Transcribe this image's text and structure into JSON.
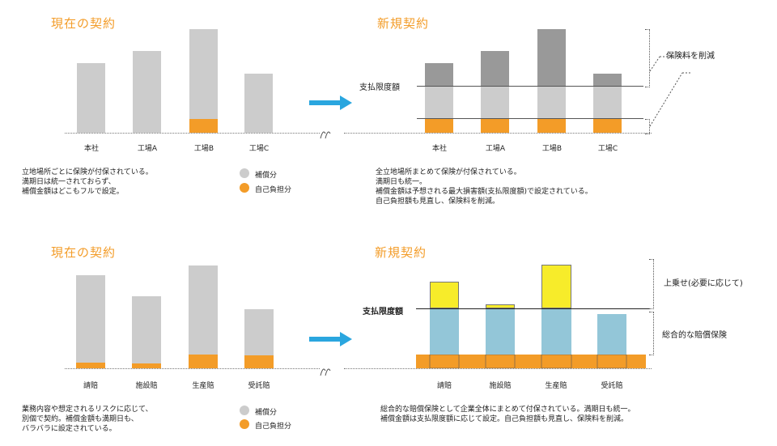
{
  "top": {
    "left_title": "現在の契約",
    "right_title": "新規契約",
    "categories": [
      "本社",
      "工場A",
      "工場B",
      "工場C"
    ],
    "limit_label": "支払限度額",
    "reduce_note": "保険料を削減",
    "left_desc": "立地場所ごとに保険が付保されている。\n満期日は統一されておらず、\n補償金額はどこもフルで設定。",
    "right_desc": "全立地場所まとめて保険が付保されている。\n満期日も統一。\n補償金額は予想される最大損害額(支払限度額)で設定されている。\n自己負担額も見直し、保険料を削減。",
    "legend": {
      "covered": "補償分",
      "self": "自己負担分"
    }
  },
  "bottom": {
    "left_title": "現在の契約",
    "right_title": "新規契約",
    "categories": [
      "請賠",
      "施設賠",
      "生産賠",
      "受託賠"
    ],
    "limit_label": "支払限度額",
    "note_upper": "上乗せ(必要に応じて)",
    "note_lower": "総合的な賠償保険",
    "left_desc": "業務内容や想定されるリスクに応じて、\n別個で契約。補償金額も満期日も、\nバラバラに設定されている。",
    "right_desc": "総合的な賠償保険として企業全体にまとめて付保されている。満期日も統一。\n補償金額は支払限度額に応じて設定。自己負担額も見直し、保険料を削減。",
    "legend": {
      "covered": "補償分",
      "self": "自己負担分"
    }
  },
  "colors": {
    "accent": "#f39c28",
    "covered": "#cccccc",
    "excess": "#999999",
    "upper": "#f7ec2a",
    "blue": "#93c6d8",
    "arrow": "#2aa6df"
  },
  "icons": {
    "arrow": "right-arrow-icon",
    "break": "axis-break-icon"
  }
}
